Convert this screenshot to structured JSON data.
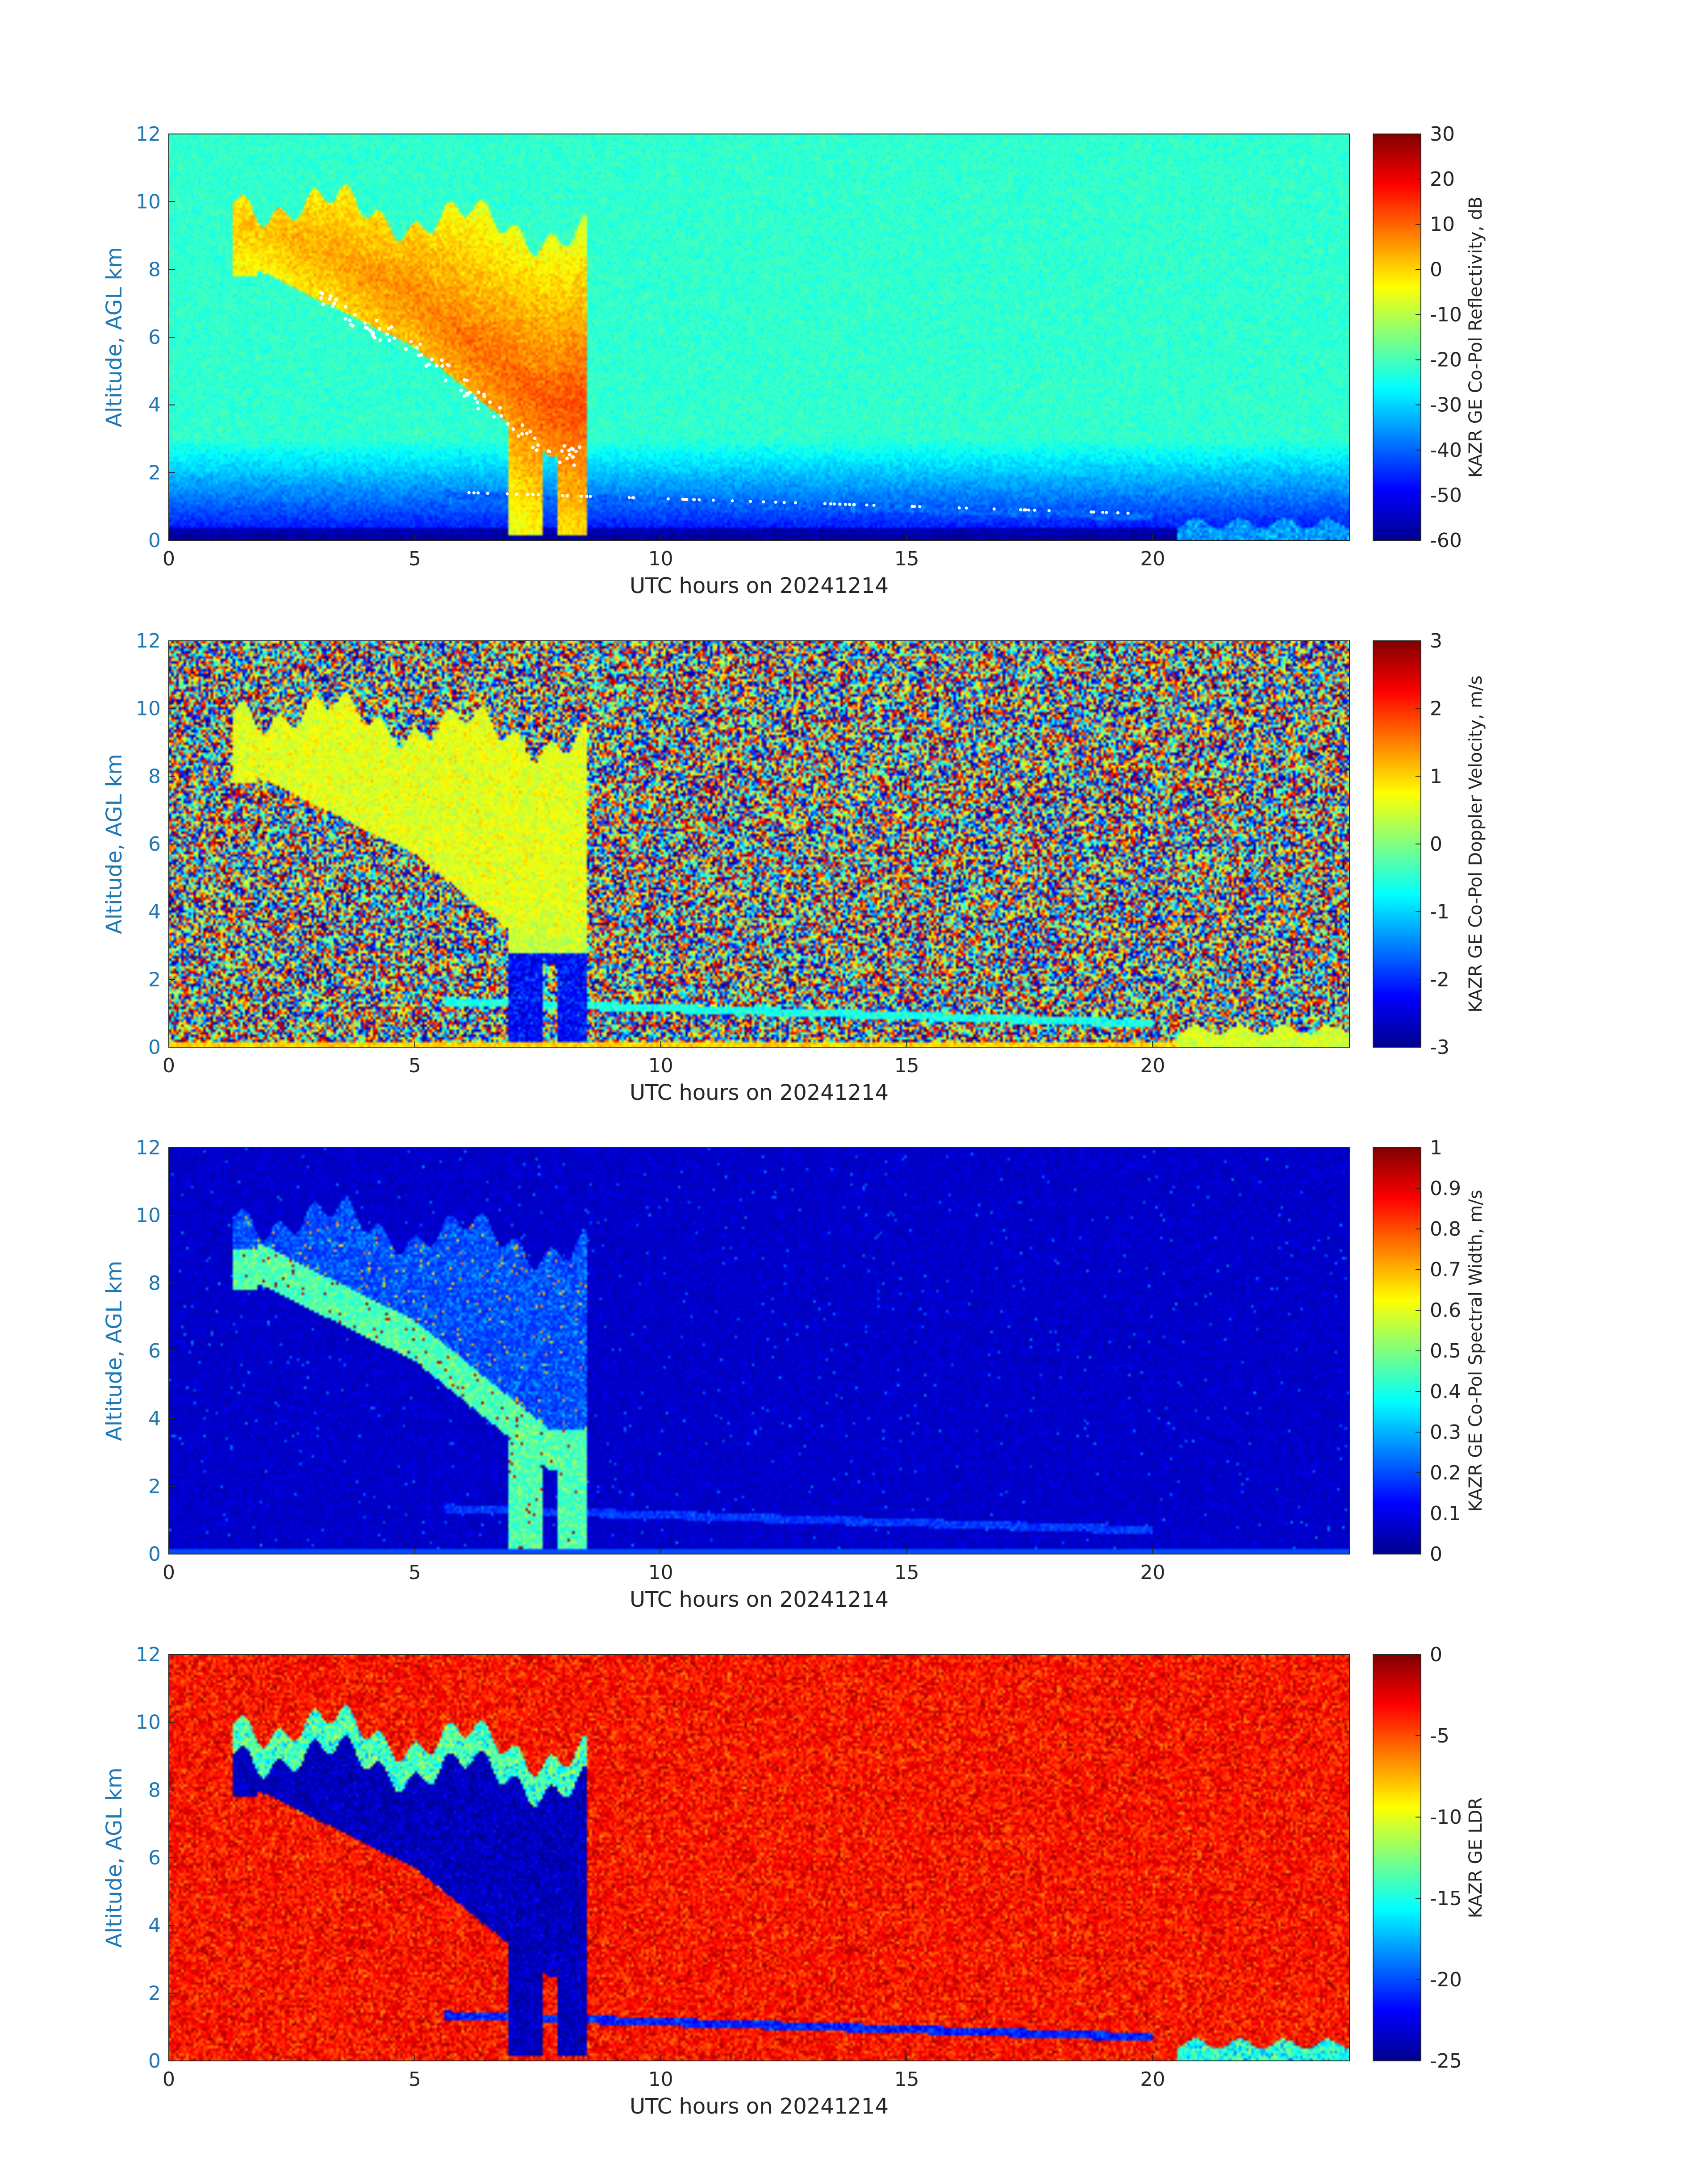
{
  "figure": {
    "background": "#ffffff"
  },
  "chart_data": [
    {
      "type": "heatmap",
      "title": "",
      "xlabel": "UTC hours on 20241214",
      "ylabel": "Altitude, AGL km",
      "xlim": [
        0,
        24
      ],
      "ylim": [
        0,
        12
      ],
      "x_ticks": [
        "0",
        "5",
        "10",
        "15",
        "20"
      ],
      "y_ticks": [
        "0",
        "2",
        "4",
        "6",
        "8",
        "10",
        "12"
      ],
      "colorbar": {
        "label": "KAZR GE Co-Pol Reflectivity, dB",
        "range": [
          -60,
          30
        ],
        "ticks": [
          "-60",
          "-50",
          "-40",
          "-30",
          "-20",
          "-10",
          "0",
          "10",
          "20",
          "30"
        ],
        "colormap": "jet"
      },
      "field": {
        "background_value": -30,
        "cloud_core_value": 8,
        "low_layer_value": -55
      },
      "features": "Deep precipitating cloud from ~1.3 to ~8.5 h, tops 9-11 km, descending base from ~8 km to surface fall streaks at 7-8.5 h; shallow low-level layer ~1.2-0.7 km from 6 to 20 h; near-surface echo after 20.5 h."
    },
    {
      "type": "heatmap",
      "title": "",
      "xlabel": "UTC hours on 20241214",
      "ylabel": "Altitude, AGL km",
      "xlim": [
        0,
        24
      ],
      "ylim": [
        0,
        12
      ],
      "x_ticks": [
        "0",
        "5",
        "10",
        "15",
        "20"
      ],
      "y_ticks": [
        "0",
        "2",
        "4",
        "6",
        "8",
        "10",
        "12"
      ],
      "colorbar": {
        "label": "KAZR GE Co-Pol Doppler Velocity, m/s",
        "range": [
          -3,
          3
        ],
        "ticks": [
          "-3",
          "-2",
          "-1",
          "0",
          "1",
          "2",
          "3"
        ],
        "colormap": "jet"
      },
      "field": {
        "background_value": "noise (uniform -3 to 3)",
        "cloud_core_value": 0.6,
        "low_layer_value": -0.5
      },
      "features": "Noise outside cloud; cloud velocities ~0 to 1 m/s aloft, strongly negative (-2 to -3 m/s) in fall streaks near surface at 7-8.5 h."
    },
    {
      "type": "heatmap",
      "title": "",
      "xlabel": "UTC hours on 20241214",
      "ylabel": "Altitude, AGL km",
      "xlim": [
        0,
        24
      ],
      "ylim": [
        0,
        12
      ],
      "x_ticks": [
        "0",
        "5",
        "10",
        "15",
        "20"
      ],
      "y_ticks": [
        "0",
        "2",
        "4",
        "6",
        "8",
        "10",
        "12"
      ],
      "colorbar": {
        "label": "KAZR GE Co-Pol Spectral Width, m/s",
        "range": [
          0,
          1
        ],
        "ticks": [
          "0",
          "0.1",
          "0.2",
          "0.3",
          "0.4",
          "0.5",
          "0.6",
          "0.7",
          "0.8",
          "0.9",
          "1"
        ],
        "colormap": "jet"
      },
      "field": {
        "background_value": 0.05,
        "cloud_core_value": 0.2,
        "low_layer_value": 0.15
      },
      "features": "Low spectral width background; cloud ~0.1-0.3 m/s with higher widths (0.4-1) near cloud base and fall streaks."
    },
    {
      "type": "heatmap",
      "title": "",
      "xlabel": "UTC hours on 20241214",
      "ylabel": "Altitude, AGL km",
      "xlim": [
        0,
        24
      ],
      "ylim": [
        0,
        12
      ],
      "x_ticks": [
        "0",
        "5",
        "10",
        "15",
        "20"
      ],
      "y_ticks": [
        "0",
        "2",
        "4",
        "6",
        "8",
        "10",
        "12"
      ],
      "colorbar": {
        "label": "KAZR GE LDR",
        "range": [
          -25,
          0
        ],
        "ticks": [
          "-25",
          "-20",
          "-15",
          "-10",
          "-5",
          "0"
        ],
        "colormap": "jet"
      },
      "field": {
        "background_value": -3,
        "cloud_core_value": -24,
        "low_layer_value": -21
      },
      "features": "Noisy LDR (~-2 to -5) outside cloud; cloud interior strongly depolarization-free (~-25 to -20) with cyan edges near cloud top."
    }
  ]
}
